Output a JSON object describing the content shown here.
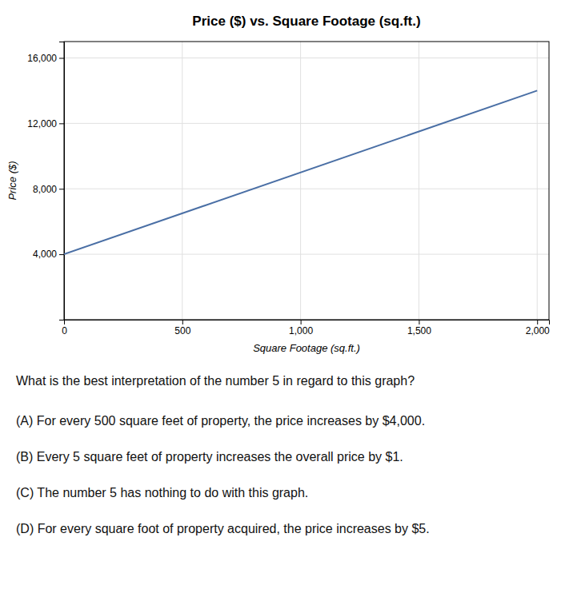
{
  "chart_data": {
    "type": "line",
    "title": "Price ($) vs. Square Footage (sq.ft.)",
    "x_label": "Square Footage (sq.ft.)",
    "y_label": "Price ($)",
    "x": [
      0,
      2000
    ],
    "values": [
      4000,
      14000
    ],
    "color": "#4a6fa5",
    "xlim": [
      0,
      2050
    ],
    "ylim": [
      0,
      17000
    ],
    "xticks": [
      0,
      500,
      {
        "value": 1000,
        "label": "1,000"
      },
      {
        "value": 1500,
        "label": "1,500"
      },
      {
        "value": 2000,
        "label": "2,000"
      }
    ],
    "yticks": [
      {
        "value": 4000,
        "label": "4,000"
      },
      {
        "value": 8000,
        "label": "8,000"
      },
      {
        "value": 12000,
        "label": "12,000"
      },
      {
        "value": 16000,
        "label": "16,000"
      }
    ],
    "grid": true,
    "annotations": [
      "What is the best interpretation of the number 5 in regard to this graph?",
      "(A) For every 500 square feet of property, the price increases by $4,000.",
      "(B) Every 5 square feet of property increases the overall price by $1.",
      "(C) The number 5 has nothing to do with this graph.",
      "(D) For every square foot of property acquired, the price increases by $5."
    ]
  }
}
